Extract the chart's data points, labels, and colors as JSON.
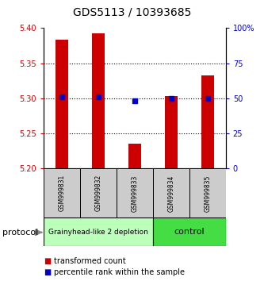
{
  "title": "GDS5113 / 10393685",
  "samples": [
    "GSM999831",
    "GSM999832",
    "GSM999833",
    "GSM999834",
    "GSM999835"
  ],
  "bar_values": [
    5.383,
    5.393,
    5.235,
    5.303,
    5.333
  ],
  "bar_base": 5.2,
  "bar_color": "#cc0000",
  "percentile_values": [
    51,
    51,
    48,
    50,
    50
  ],
  "percentile_color": "#0000cc",
  "ylim_left": [
    5.2,
    5.4
  ],
  "ylim_right": [
    0,
    100
  ],
  "yticks_left": [
    5.2,
    5.25,
    5.3,
    5.35,
    5.4
  ],
  "yticks_right": [
    0,
    25,
    50,
    75,
    100
  ],
  "ytick_labels_right": [
    "0",
    "25",
    "50",
    "75",
    "100%"
  ],
  "dotted_lines": [
    5.25,
    5.3,
    5.35
  ],
  "groups": [
    {
      "label": "Grainyhead-like 2 depletion",
      "samples": [
        0,
        1,
        2
      ],
      "color": "#bbffbb",
      "font_size": 6.5
    },
    {
      "label": "control",
      "samples": [
        3,
        4
      ],
      "color": "#44dd44",
      "font_size": 8
    }
  ],
  "protocol_label": "protocol",
  "legend_items": [
    {
      "color": "#cc0000",
      "label": "transformed count"
    },
    {
      "color": "#0000cc",
      "label": "percentile rank within the sample"
    }
  ],
  "bar_width": 0.35,
  "background_color": "#ffffff",
  "plot_bg": "#ffffff",
  "tick_label_color_left": "#cc0000",
  "tick_label_color_right": "#0000cc",
  "sample_box_color": "#cccccc",
  "title_fontsize": 10
}
